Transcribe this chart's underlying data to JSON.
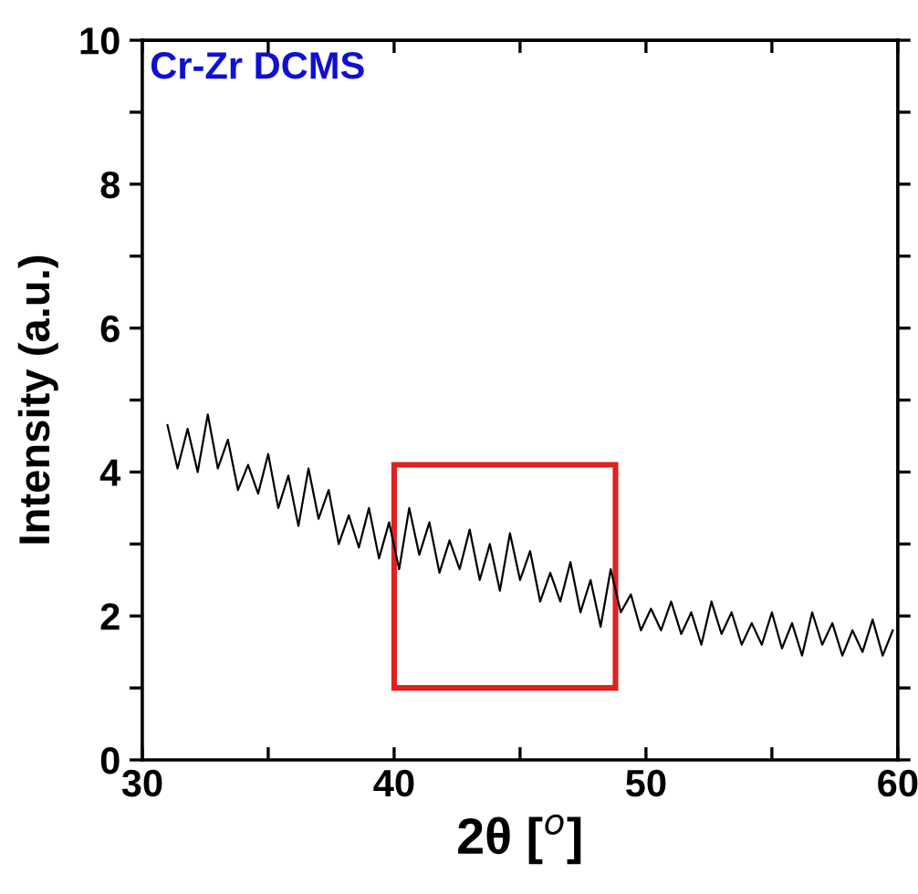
{
  "chart_data": {
    "type": "line",
    "xlabel": "2θ [$^{o}$]",
    "ylabel": "Intensity (a.u.)",
    "annotations": [
      "Cr-Zr DCMS"
    ],
    "xlim": [
      30,
      60
    ],
    "ylim": [
      0,
      10
    ],
    "xticks": [
      30,
      {
        "value": 35,
        "label": null
      },
      40,
      {
        "value": 45,
        "label": null
      },
      50,
      {
        "value": 55,
        "label": null
      },
      60
    ],
    "yticks": [
      0,
      {
        "value": 1,
        "label": null
      },
      2,
      {
        "value": 3,
        "label": null
      },
      4,
      {
        "value": 5,
        "label": null
      },
      6,
      {
        "value": 7,
        "label": null
      },
      8,
      {
        "value": 9,
        "label": null
      },
      10
    ],
    "grid": false,
    "marker": "none",
    "line_style": "solid",
    "series": [
      {
        "color": "#000000",
        "x": [
          31.0,
          31.4,
          31.8,
          32.2,
          32.6,
          33.0,
          33.4,
          33.8,
          34.2,
          34.6,
          35.0,
          35.4,
          35.8,
          36.2,
          36.6,
          37.0,
          37.4,
          37.8,
          38.2,
          38.6,
          39.0,
          39.4,
          39.8,
          40.2,
          40.6,
          41.0,
          41.4,
          41.8,
          42.2,
          42.6,
          43.0,
          43.4,
          43.8,
          44.2,
          44.6,
          45.0,
          45.4,
          45.8,
          46.2,
          46.6,
          47.0,
          47.4,
          47.8,
          48.2,
          48.6,
          49.0,
          49.4,
          49.8,
          50.2,
          50.6,
          51.0,
          51.4,
          51.8,
          52.2,
          52.6,
          53.0,
          53.4,
          53.8,
          54.2,
          54.6,
          55.0,
          55.4,
          55.8,
          56.2,
          56.6,
          57.0,
          57.4,
          57.8,
          58.2,
          58.6,
          59.0,
          59.4,
          59.8
        ],
        "values": [
          4.65,
          4.05,
          4.6,
          4.0,
          4.8,
          4.05,
          4.45,
          3.75,
          4.1,
          3.7,
          4.25,
          3.5,
          3.95,
          3.25,
          4.05,
          3.35,
          3.75,
          3.0,
          3.4,
          2.95,
          3.5,
          2.8,
          3.3,
          2.65,
          3.5,
          2.85,
          3.3,
          2.6,
          3.05,
          2.65,
          3.2,
          2.5,
          3.0,
          2.35,
          3.15,
          2.5,
          2.9,
          2.2,
          2.6,
          2.2,
          2.75,
          2.05,
          2.5,
          1.85,
          2.65,
          2.05,
          2.3,
          1.8,
          2.1,
          1.8,
          2.2,
          1.75,
          2.05,
          1.6,
          2.2,
          1.75,
          2.05,
          1.6,
          1.9,
          1.6,
          2.05,
          1.55,
          1.9,
          1.45,
          2.05,
          1.6,
          1.9,
          1.45,
          1.8,
          1.5,
          1.95,
          1.45,
          1.8
        ]
      }
    ]
  }
}
